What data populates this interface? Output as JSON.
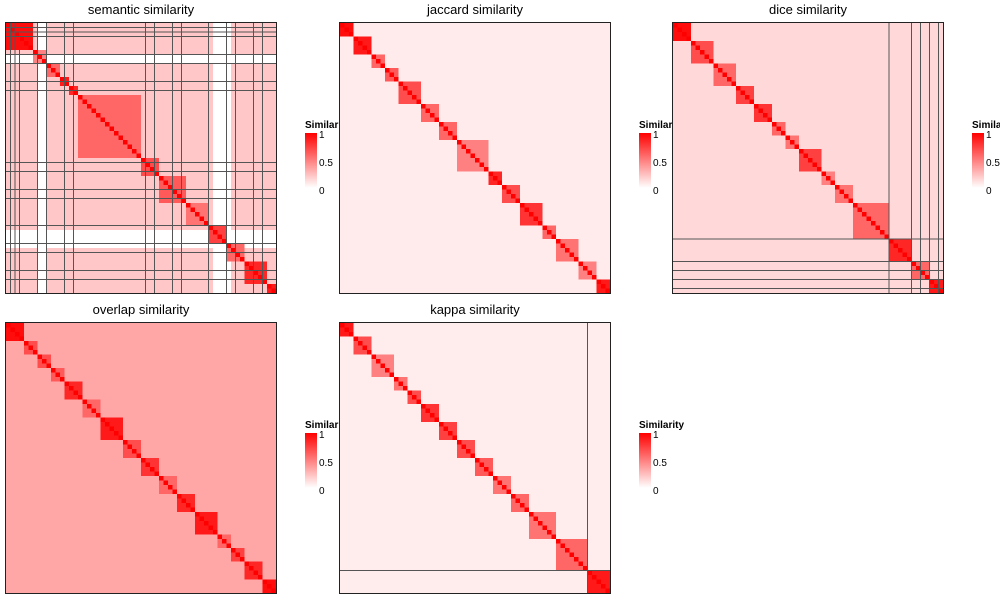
{
  "chart_data": [
    {
      "type": "heatmap",
      "title": "semantic similarity",
      "n": 60,
      "blocks": [
        [
          0,
          6,
          0.95
        ],
        [
          6,
          9,
          0.5
        ],
        [
          9,
          12,
          0.6
        ],
        [
          12,
          14,
          0.9
        ],
        [
          14,
          16,
          0.85
        ],
        [
          16,
          30,
          0.6
        ],
        [
          30,
          34,
          0.7
        ],
        [
          34,
          40,
          0.65
        ],
        [
          40,
          45,
          0.55
        ],
        [
          45,
          49,
          0.75
        ],
        [
          49,
          53,
          0.6
        ],
        [
          53,
          58,
          0.85
        ],
        [
          58,
          60,
          0.9
        ]
      ],
      "background": 0.22,
      "blank_bands": [
        [
          7,
          9
        ],
        [
          46,
          50
        ]
      ],
      "grid_lines": [
        1,
        2,
        3,
        7,
        9,
        13,
        15,
        31,
        33,
        37,
        39,
        45,
        49,
        51,
        55,
        57
      ],
      "legend": {
        "title": "Similarity",
        "ticks": [
          "1",
          "0.5",
          "0"
        ]
      }
    },
    {
      "type": "heatmap",
      "title": "jaccard similarity",
      "n": 60,
      "blocks": [
        [
          0,
          3,
          0.95
        ],
        [
          3,
          7,
          0.9
        ],
        [
          7,
          10,
          0.6
        ],
        [
          10,
          13,
          0.65
        ],
        [
          13,
          18,
          0.7
        ],
        [
          18,
          22,
          0.6
        ],
        [
          22,
          26,
          0.6
        ],
        [
          26,
          33,
          0.5
        ],
        [
          33,
          36,
          0.85
        ],
        [
          36,
          40,
          0.7
        ],
        [
          40,
          45,
          0.8
        ],
        [
          45,
          48,
          0.6
        ],
        [
          48,
          53,
          0.55
        ],
        [
          53,
          57,
          0.5
        ],
        [
          57,
          60,
          0.9
        ]
      ],
      "background": 0.08,
      "blank_bands": [],
      "grid_lines": [],
      "legend": {
        "title": "Similarity",
        "ticks": [
          "1",
          "0.5",
          "0"
        ]
      }
    },
    {
      "type": "heatmap",
      "title": "dice similarity",
      "n": 60,
      "blocks": [
        [
          0,
          4,
          0.95
        ],
        [
          4,
          9,
          0.7
        ],
        [
          9,
          14,
          0.6
        ],
        [
          14,
          18,
          0.75
        ],
        [
          18,
          22,
          0.8
        ],
        [
          22,
          25,
          0.6
        ],
        [
          25,
          28,
          0.55
        ],
        [
          28,
          33,
          0.75
        ],
        [
          33,
          36,
          0.5
        ],
        [
          36,
          40,
          0.55
        ],
        [
          40,
          48,
          0.6
        ],
        [
          48,
          53,
          0.85
        ],
        [
          53,
          57,
          0.6
        ],
        [
          57,
          60,
          0.9
        ]
      ],
      "background": 0.15,
      "blank_bands": [],
      "grid_lines": [
        48,
        53,
        55,
        57,
        59
      ],
      "legend": {
        "title": "Similarity",
        "ticks": [
          "1",
          "0.5",
          "0"
        ]
      }
    },
    {
      "type": "heatmap",
      "title": "overlap similarity",
      "n": 60,
      "blocks": [
        [
          0,
          4,
          0.95
        ],
        [
          4,
          7,
          0.7
        ],
        [
          7,
          10,
          0.7
        ],
        [
          10,
          13,
          0.65
        ],
        [
          13,
          17,
          0.85
        ],
        [
          17,
          21,
          0.6
        ],
        [
          21,
          26,
          0.9
        ],
        [
          26,
          30,
          0.7
        ],
        [
          30,
          34,
          0.8
        ],
        [
          34,
          38,
          0.6
        ],
        [
          38,
          42,
          0.85
        ],
        [
          42,
          47,
          0.9
        ],
        [
          47,
          50,
          0.6
        ],
        [
          50,
          53,
          0.75
        ],
        [
          53,
          57,
          0.85
        ],
        [
          57,
          60,
          0.95
        ]
      ],
      "background": 0.35,
      "blank_bands": [],
      "grid_lines": [],
      "legend": {
        "title": "Similarity",
        "ticks": [
          "1",
          "0.5",
          "0"
        ]
      }
    },
    {
      "type": "heatmap",
      "title": "kappa similarity",
      "n": 60,
      "blocks": [
        [
          0,
          3,
          0.9
        ],
        [
          3,
          7,
          0.7
        ],
        [
          7,
          12,
          0.5
        ],
        [
          12,
          15,
          0.55
        ],
        [
          15,
          18,
          0.7
        ],
        [
          18,
          22,
          0.8
        ],
        [
          22,
          26,
          0.75
        ],
        [
          26,
          30,
          0.7
        ],
        [
          30,
          34,
          0.65
        ],
        [
          34,
          38,
          0.55
        ],
        [
          38,
          42,
          0.6
        ],
        [
          42,
          48,
          0.55
        ],
        [
          48,
          55,
          0.6
        ],
        [
          55,
          60,
          0.9
        ]
      ],
      "background": 0.07,
      "blank_bands": [],
      "grid_lines": [
        55
      ],
      "legend": {
        "title": "Similarity",
        "ticks": [
          "1",
          "0.5",
          "0"
        ]
      }
    }
  ]
}
